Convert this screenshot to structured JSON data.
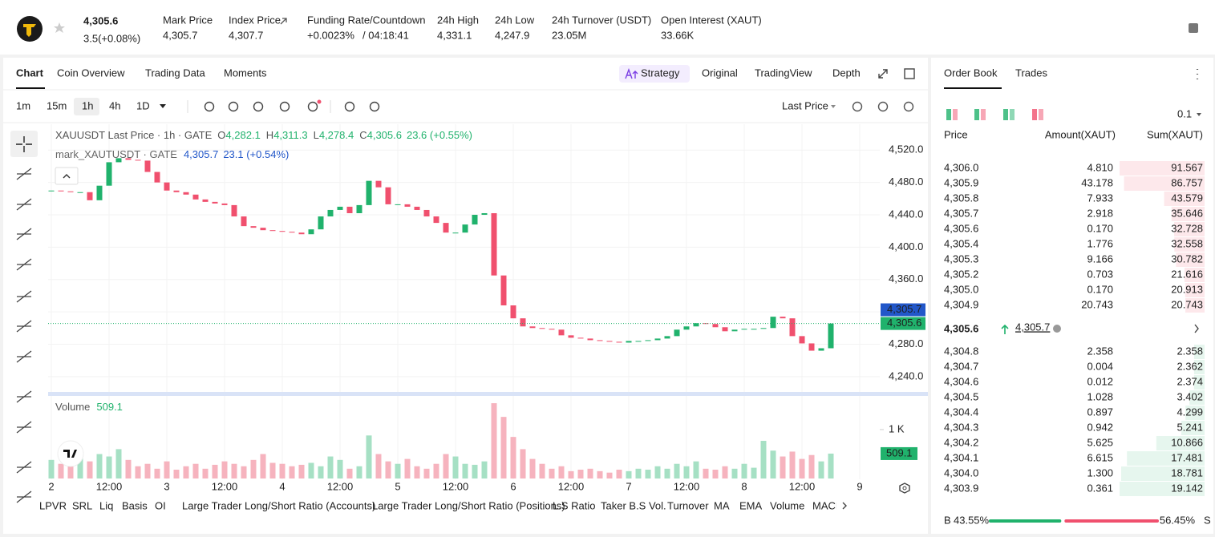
{
  "header": {
    "price": "4,305.6",
    "change": "3.5(+0.08%)",
    "stats": [
      {
        "label": "Mark Price",
        "value": "4,305.7"
      },
      {
        "label": "Index Price",
        "value": "4,307.7"
      },
      {
        "label": "Funding Rate/Countdown",
        "value": "+0.0023%",
        "extra": "/ 04:18:41"
      },
      {
        "label": "24h High",
        "value": "4,331.1"
      },
      {
        "label": "24h Low",
        "value": "4,247.9"
      },
      {
        "label": "24h Turnover (USDT)",
        "value": "23.05M"
      },
      {
        "label": "Open Interest (XAUT)",
        "value": "33.66K"
      }
    ]
  },
  "chart_tabs": [
    "Chart",
    "Coin Overview",
    "Trading Data",
    "Moments"
  ],
  "view_tabs": [
    "Strategy",
    "Original",
    "TradingView",
    "Depth"
  ],
  "intervals": [
    "1m",
    "15m",
    "1h",
    "4h",
    "1D"
  ],
  "price_source": "Last Price",
  "chart": {
    "legend": {
      "title": "XAUUSDT Last Price · 1h · GATE",
      "ohlc": [
        [
          "O",
          "4,282.1"
        ],
        [
          "H",
          "4,311.3"
        ],
        [
          "L",
          "4,278.4"
        ],
        [
          "C",
          "4,305.6"
        ]
      ],
      "change": "23.6 (+0.55%)",
      "mark_title": "mark_XAUTUSDT · GATE",
      "mark_value": "4,305.7",
      "mark_change": "23.1 (+0.54%)"
    },
    "ylim": [
      4220,
      4552
    ],
    "yticks": [
      {
        "value": 4240,
        "label": "4,240.0"
      },
      {
        "value": 4280,
        "label": "4,280.0"
      },
      {
        "value": 4320,
        "label": "4,320.0"
      },
      {
        "value": 4360,
        "label": "4,360.0"
      },
      {
        "value": 4400,
        "label": "4,400.0"
      },
      {
        "value": 4440,
        "label": "4,440.0"
      },
      {
        "value": 4480,
        "label": "4,480.0"
      },
      {
        "value": 4520,
        "label": "4,520.0"
      }
    ],
    "xticks": [
      "2",
      "12:00",
      "3",
      "12:00",
      "4",
      "12:00",
      "5",
      "12:00",
      "6",
      "12:00",
      "7",
      "12:00",
      "8",
      "12:00",
      "9"
    ],
    "mark_tag": {
      "value": 4305.7,
      "label": "4,305.7"
    },
    "last_tag": {
      "value": 4305.6,
      "label": "4,305.6"
    },
    "close": [
      4470,
      4469,
      4468,
      4468,
      4458,
      4476,
      4505,
      4510,
      4508,
      4507,
      4493,
      4480,
      4470,
      4468,
      4465,
      4459,
      4456,
      4454,
      4452,
      4438,
      4426,
      4424,
      4421,
      4420,
      4419,
      4418,
      4416,
      4422,
      4438,
      4446,
      4450,
      4442,
      4452,
      4482,
      4474,
      4453,
      4453,
      4450,
      4446,
      4438,
      4430,
      4418,
      4418,
      4428,
      4440,
      4442,
      4365,
      4328,
      4312,
      4302,
      4300,
      4299,
      4298,
      4291,
      4288,
      4287,
      4285,
      4284,
      4283,
      4282,
      4284,
      4284,
      4285,
      4287,
      4290,
      4298,
      4302,
      4306,
      4305,
      4301,
      4296,
      4298,
      4299,
      4299,
      4300,
      4314,
      4312,
      4290,
      4281,
      4272,
      4275,
      4305.6
    ],
    "volume_title": "Volume",
    "vlim": [
      0,
      1590
    ],
    "vticks": [
      {
        "value": 1000,
        "label": "1 K"
      }
    ],
    "volume": [
      380,
      300,
      250,
      420,
      350,
      500,
      450,
      600,
      380,
      250,
      300,
      200,
      350,
      180,
      250,
      300,
      200,
      280,
      350,
      300,
      250,
      380,
      500,
      320,
      300,
      250,
      280,
      320,
      250,
      450,
      380,
      200,
      250,
      880,
      500,
      350,
      300,
      400,
      250,
      200,
      300,
      500,
      450,
      300,
      280,
      350,
      1540,
      1260,
      850,
      600,
      400,
      300,
      200,
      250,
      150,
      180,
      200,
      150,
      120,
      180,
      150,
      200,
      180,
      250,
      200,
      300,
      250,
      350,
      200,
      180,
      250,
      200,
      300,
      220,
      770,
      570,
      450,
      550,
      400,
      480,
      350,
      509.1
    ],
    "volume_last": {
      "value": 509.1,
      "label": "509.1"
    }
  },
  "indicators": [
    "LPVR",
    "SRL",
    "Liq",
    "Basis",
    "OI",
    "Large Trader Long/Short Ratio (Accounts)",
    "Large Trader Long/Short Ratio (Positions)",
    "L.S Ratio",
    "Taker B.S Vol.",
    "Turnover",
    "MA",
    "EMA",
    "Volume",
    "MACD"
  ],
  "order_book": {
    "tabs": [
      "Order Book",
      "Trades"
    ],
    "precision": "0.1",
    "columns": [
      "Price",
      "Amount(XAUT)",
      "Sum(XAUT)"
    ],
    "asks": [
      {
        "price": "4,306.0",
        "amount": "4.810",
        "sum": 91.567
      },
      {
        "price": "4,305.9",
        "amount": "43.178",
        "sum": 86.757
      },
      {
        "price": "4,305.8",
        "amount": "7.933",
        "sum": 43.579
      },
      {
        "price": "4,305.7",
        "amount": "2.918",
        "sum": 35.646
      },
      {
        "price": "4,305.6",
        "amount": "0.170",
        "sum": 32.728
      },
      {
        "price": "4,305.4",
        "amount": "1.776",
        "sum": 32.558
      },
      {
        "price": "4,305.3",
        "amount": "9.166",
        "sum": 30.782
      },
      {
        "price": "4,305.2",
        "amount": "0.703",
        "sum": 21.616
      },
      {
        "price": "4,305.0",
        "amount": "0.170",
        "sum": 20.913
      },
      {
        "price": "4,304.9",
        "amount": "20.743",
        "sum": 20.743
      }
    ],
    "mid_price": "4,305.6",
    "mid_mark": "4,305.7",
    "bids": [
      {
        "price": "4,304.8",
        "amount": "2.358",
        "sum": 2.358
      },
      {
        "price": "4,304.7",
        "amount": "0.004",
        "sum": 2.362
      },
      {
        "price": "4,304.6",
        "amount": "0.012",
        "sum": 2.374
      },
      {
        "price": "4,304.5",
        "amount": "1.028",
        "sum": 3.402
      },
      {
        "price": "4,304.4",
        "amount": "0.897",
        "sum": 4.299
      },
      {
        "price": "4,304.3",
        "amount": "0.942",
        "sum": 5.241
      },
      {
        "price": "4,304.2",
        "amount": "5.625",
        "sum": 10.866
      },
      {
        "price": "4,304.1",
        "amount": "6.615",
        "sum": 17.481
      },
      {
        "price": "4,304.0",
        "amount": "1.300",
        "sum": 18.781
      },
      {
        "price": "4,303.9",
        "amount": "0.361",
        "sum": 19.142
      }
    ],
    "buy_tag": "B",
    "sell_tag": "S",
    "buy": {
      "value": 43.55,
      "label": "43.55%"
    },
    "sell": {
      "value": 56.45,
      "label": "56.45%"
    }
  }
}
